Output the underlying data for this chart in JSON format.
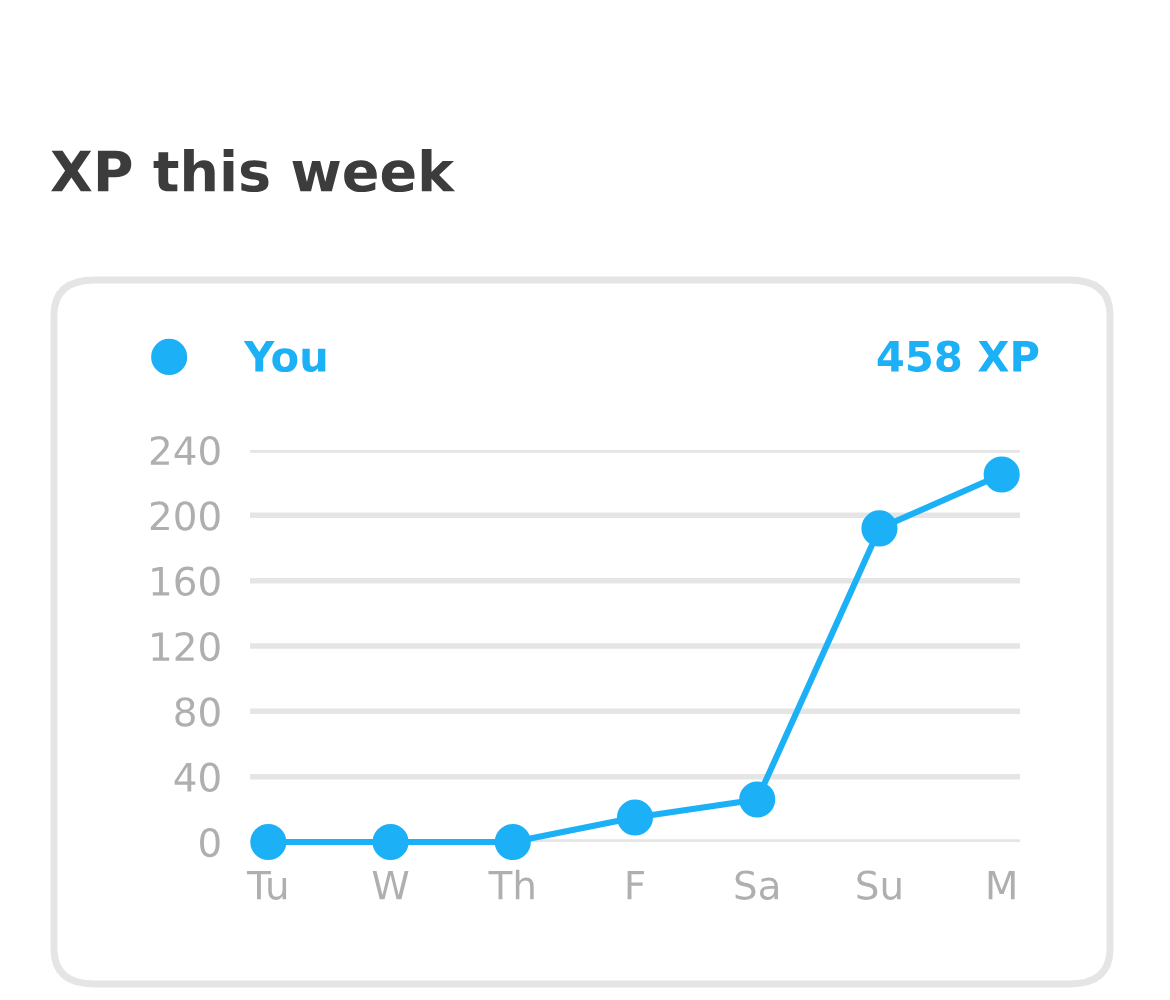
{
  "chart_data": {
    "type": "line",
    "title": "XP this week",
    "categories": [
      "Tu",
      "W",
      "Th",
      "F",
      "Sa",
      "Su",
      "M"
    ],
    "series": [
      {
        "name": "You",
        "color": "#1cb0f6",
        "values": [
          0,
          0,
          0,
          15,
          26,
          192,
          225
        ]
      }
    ],
    "ylim": [
      0,
      240
    ],
    "yticks": [
      0,
      40,
      80,
      120,
      160,
      200,
      240
    ],
    "grid": "y",
    "legend": "top left",
    "marker": "circle",
    "line_style": "solid",
    "annotations": [
      "458 XP"
    ]
  }
}
